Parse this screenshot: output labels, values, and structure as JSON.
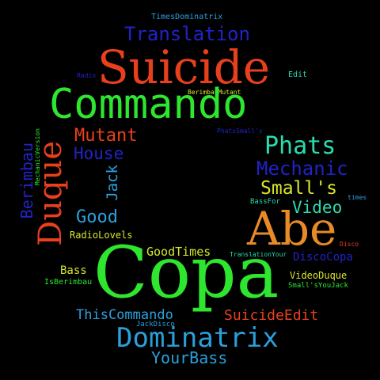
{
  "colors": {
    "background": "#000000",
    "red": "#e8401c",
    "green": "#2ee62e",
    "blue": "#2222c8",
    "lightblue": "#2aa0dc",
    "orange": "#e88a28",
    "yellow": "#d8e628",
    "teal": "#2adcb0"
  },
  "words": {
    "times_dominatrix": "TimesDominatrix",
    "translation": "Translation",
    "suicide": "Suicide",
    "radio": "Radio",
    "edit": "Edit",
    "berimbau_mutant": "BerimbauMutant",
    "commando": "Commando",
    "phats_smalls": "PhatsSmall's",
    "mechanic_version": "MechanicVersion",
    "duque": "Duque",
    "mutant": "Mutant",
    "house": "House",
    "phats": "Phats",
    "berimbau": "Berimbau",
    "jack": "Jack",
    "mechanic": "Mechanic",
    "smalls": "Small's",
    "times": "times",
    "bass_for": "BassFor",
    "video": "Video",
    "good": "Good",
    "abe": "Abe",
    "radio_loves": "RadioLovels",
    "disco": "Disco",
    "good_times": "GoodTimes",
    "translation_your": "TranslationYour",
    "disco_copa": "DiscoCopa",
    "copa": "Copa",
    "bass": "Bass",
    "video_duque": "VideoDuque",
    "is_berimbau": "IsBerimbau",
    "smalls_you_jack": "Small'sYouJack",
    "this_commando": "ThisCommando",
    "suicide_edit": "SuicideEdit",
    "jack_disco": "JackDisco",
    "dominatrix": "Dominatrix",
    "your_bass": "YourBass"
  }
}
